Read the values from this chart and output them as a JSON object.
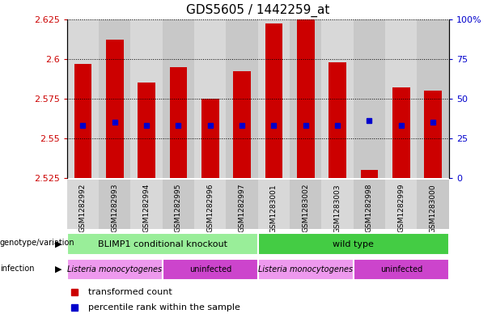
{
  "title": "GDS5605 / 1442259_at",
  "samples": [
    "GSM1282992",
    "GSM1282993",
    "GSM1282994",
    "GSM1282995",
    "GSM1282996",
    "GSM1282997",
    "GSM1283001",
    "GSM1283002",
    "GSM1283003",
    "GSM1282998",
    "GSM1282999",
    "GSM1283000"
  ],
  "transformed_count": [
    2.597,
    2.612,
    2.585,
    2.595,
    2.575,
    2.592,
    2.622,
    2.625,
    2.598,
    2.53,
    2.582,
    2.58
  ],
  "percentile_rank": [
    33,
    35,
    33,
    33,
    33,
    33,
    33,
    33,
    33,
    36,
    33,
    35
  ],
  "y_min": 2.525,
  "y_max": 2.625,
  "y_ticks_left": [
    2.525,
    2.55,
    2.575,
    2.6,
    2.625
  ],
  "y_ticks_right": [
    0,
    25,
    50,
    75,
    100
  ],
  "bar_color": "#cc0000",
  "dot_color": "#0000cc",
  "genotype_groups": [
    {
      "label": "BLIMP1 conditional knockout",
      "start": 0,
      "end": 5,
      "color": "#99ee99"
    },
    {
      "label": "wild type",
      "start": 6,
      "end": 11,
      "color": "#44cc44"
    }
  ],
  "infection_groups": [
    {
      "label": "Listeria monocytogenes",
      "start": 0,
      "end": 2,
      "color": "#ee99ee"
    },
    {
      "label": "uninfected",
      "start": 3,
      "end": 5,
      "color": "#cc44cc"
    },
    {
      "label": "Listeria monocytogenes",
      "start": 6,
      "end": 8,
      "color": "#ee99ee"
    },
    {
      "label": "uninfected",
      "start": 9,
      "end": 11,
      "color": "#cc44cc"
    }
  ],
  "left_label_color": "#cc0000",
  "right_label_color": "#0000cc",
  "legend_items": [
    {
      "label": "transformed count",
      "color": "#cc0000"
    },
    {
      "label": "percentile rank within the sample",
      "color": "#0000cc"
    }
  ],
  "col_bg_even": "#d8d8d8",
  "col_bg_odd": "#c8c8c8"
}
